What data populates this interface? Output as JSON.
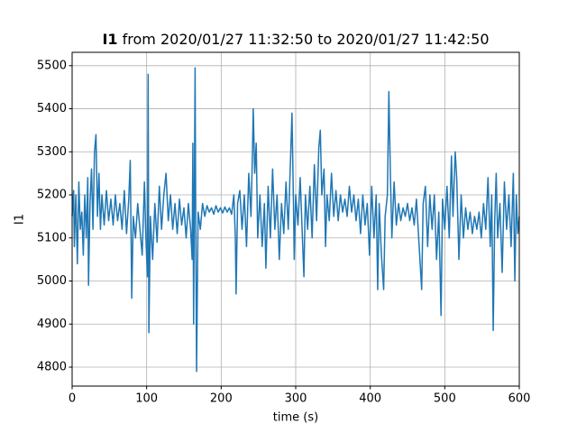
{
  "chart_data": {
    "type": "line",
    "title": {
      "series": "I1",
      "range": "from 2020/01/27 11:32:50 to 2020/01/27 11:42:50"
    },
    "xlabel": "time (s)",
    "ylabel": "I1",
    "xlim": [
      0,
      600
    ],
    "ylim": [
      4756,
      5531
    ],
    "xticks": [
      0,
      100,
      200,
      300,
      400,
      500,
      600
    ],
    "yticks": [
      4800,
      4900,
      5000,
      5100,
      5200,
      5300,
      5400,
      5500
    ],
    "grid": true,
    "color": "#1f77b4",
    "x": [
      0,
      2,
      3,
      5,
      7,
      9,
      11,
      13,
      15,
      17,
      19,
      21,
      22,
      24,
      26,
      28,
      30,
      32,
      34,
      36,
      38,
      40,
      43,
      46,
      49,
      52,
      55,
      58,
      61,
      64,
      67,
      70,
      73,
      76,
      78,
      80,
      82,
      85,
      88,
      91,
      94,
      97,
      99,
      101,
      102,
      103,
      105,
      108,
      111,
      114,
      117,
      120,
      123,
      126,
      129,
      132,
      135,
      138,
      141,
      144,
      147,
      150,
      153,
      156,
      159,
      161,
      162,
      163,
      164,
      165,
      166,
      167,
      169,
      172,
      175,
      178,
      181,
      184,
      187,
      190,
      193,
      196,
      199,
      202,
      205,
      208,
      211,
      214,
      217,
      219,
      220,
      222,
      225,
      228,
      231,
      234,
      237,
      240,
      242,
      243,
      245,
      247,
      249,
      252,
      255,
      258,
      260,
      263,
      266,
      269,
      272,
      275,
      278,
      281,
      284,
      287,
      290,
      293,
      295,
      297,
      298,
      300,
      303,
      306,
      309,
      311,
      313,
      316,
      319,
      322,
      325,
      328,
      331,
      333,
      335,
      338,
      340,
      342,
      345,
      348,
      351,
      354,
      357,
      360,
      363,
      366,
      369,
      372,
      375,
      378,
      381,
      384,
      387,
      390,
      393,
      396,
      399,
      402,
      405,
      408,
      410,
      412,
      415,
      418,
      420,
      423,
      425,
      427,
      429,
      432,
      435,
      438,
      441,
      444,
      447,
      450,
      453,
      456,
      459,
      462,
      465,
      467,
      469,
      471,
      474,
      477,
      480,
      483,
      486,
      489,
      492,
      495,
      497,
      500,
      503,
      506,
      509,
      511,
      514,
      516,
      519,
      522,
      525,
      528,
      531,
      534,
      537,
      540,
      543,
      546,
      549,
      552,
      555,
      558,
      561,
      563,
      565,
      567,
      569,
      571,
      574,
      577,
      580,
      583,
      586,
      589,
      592,
      594,
      596,
      598,
      600
    ],
    "values": [
      5150,
      5210,
      5080,
      5200,
      5040,
      5230,
      5120,
      5160,
      5060,
      5200,
      5100,
      5240,
      4990,
      5180,
      5260,
      5120,
      5300,
      5340,
      5150,
      5250,
      5120,
      5200,
      5130,
      5210,
      5140,
      5190,
      5130,
      5200,
      5140,
      5180,
      5120,
      5210,
      5110,
      5190,
      5280,
      4960,
      5150,
      5100,
      5180,
      5120,
      5060,
      5230,
      5100,
      5010,
      5480,
      4880,
      5150,
      5050,
      5180,
      5090,
      5220,
      5120,
      5200,
      5250,
      5140,
      5200,
      5120,
      5180,
      5110,
      5190,
      5130,
      5170,
      5100,
      5180,
      5120,
      5050,
      5320,
      4900,
      5200,
      5495,
      5080,
      4790,
      5160,
      5120,
      5180,
      5150,
      5175,
      5160,
      5170,
      5155,
      5175,
      5160,
      5170,
      5158,
      5172,
      5160,
      5170,
      5155,
      5200,
      5100,
      4970,
      5180,
      5210,
      5120,
      5200,
      5080,
      5250,
      5150,
      5300,
      5400,
      5250,
      5320,
      5100,
      5200,
      5080,
      5180,
      5030,
      5220,
      5100,
      5260,
      5120,
      5200,
      5050,
      5180,
      5110,
      5230,
      5120,
      5280,
      5390,
      5180,
      5050,
      5200,
      5130,
      5240,
      5100,
      5010,
      5200,
      5120,
      5220,
      5100,
      5270,
      5140,
      5310,
      5350,
      5200,
      5260,
      5080,
      5200,
      5140,
      5250,
      5150,
      5210,
      5140,
      5200,
      5160,
      5190,
      5150,
      5220,
      5160,
      5200,
      5140,
      5190,
      5110,
      5200,
      5130,
      5180,
      5060,
      5220,
      5100,
      5200,
      4980,
      5180,
      5060,
      4980,
      5150,
      5200,
      5440,
      5250,
      5100,
      5230,
      5130,
      5180,
      5140,
      5170,
      5150,
      5180,
      5140,
      5170,
      5130,
      5190,
      5100,
      5040,
      4980,
      5180,
      5220,
      5080,
      5200,
      5120,
      5200,
      5050,
      5160,
      4920,
      5190,
      5120,
      5220,
      5100,
      5290,
      5150,
      5300,
      5240,
      5050,
      5200,
      5100,
      5170,
      5120,
      5160,
      5110,
      5150,
      5120,
      5160,
      5100,
      5180,
      5120,
      5240,
      5080,
      5200,
      4885,
      5140,
      5250,
      5100,
      5180,
      5020,
      5230,
      5120,
      5200,
      5080,
      5250,
      5000,
      5200,
      5110,
      5150
    ]
  }
}
